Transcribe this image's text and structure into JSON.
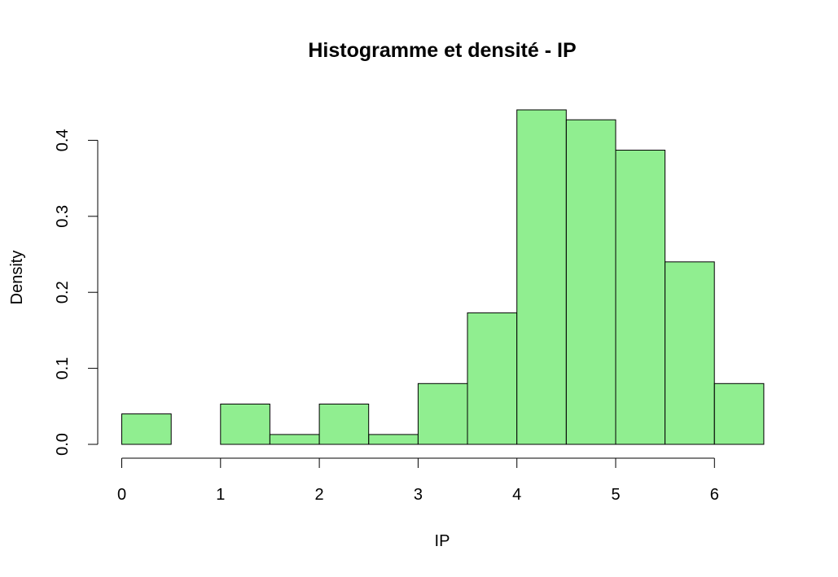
{
  "chart_data": {
    "type": "bar",
    "title": "Histogramme et densité - IP",
    "xlabel": "IP",
    "ylabel": "Density",
    "bin_edges": [
      0,
      0.5,
      1,
      1.5,
      2,
      2.5,
      3,
      3.5,
      4,
      4.5,
      5,
      5.5,
      6,
      6.5
    ],
    "values": [
      0.04,
      0.0,
      0.053,
      0.013,
      0.053,
      0.013,
      0.08,
      0.173,
      0.44,
      0.427,
      0.387,
      0.24,
      0.08
    ],
    "xlim": [
      0,
      6.5
    ],
    "ylim": [
      0,
      0.44
    ],
    "x_ticks": [
      0,
      1,
      2,
      3,
      4,
      5,
      6
    ],
    "x_tick_labels": [
      "0",
      "1",
      "2",
      "3",
      "4",
      "5",
      "6"
    ],
    "y_ticks": [
      0.0,
      0.1,
      0.2,
      0.3,
      0.4
    ],
    "y_tick_labels": [
      "0.0",
      "0.1",
      "0.2",
      "0.3",
      "0.4"
    ],
    "bar_color": "#90ee90",
    "edge_color": "#000000",
    "grid": false,
    "legend": "none"
  }
}
